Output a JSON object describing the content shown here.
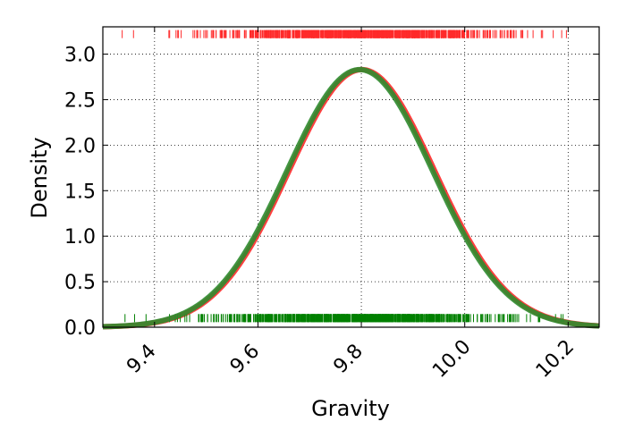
{
  "chart_data": {
    "type": "line",
    "title": "",
    "xlabel": "Gravity",
    "ylabel": "Density",
    "xlim": [
      9.3,
      10.26
    ],
    "ylim": [
      0.0,
      3.3
    ],
    "grid": true,
    "grid_style": "dotted",
    "legend": "none",
    "x_ticks": [
      9.4,
      9.6,
      9.8,
      10.0,
      10.2
    ],
    "x_tick_labels": [
      "9.4",
      "9.6",
      "9.8",
      "10.0",
      "10.2"
    ],
    "y_ticks": [
      0.0,
      0.5,
      1.0,
      1.5,
      2.0,
      2.5,
      3.0
    ],
    "y_tick_labels": [
      "0.0",
      "0.5",
      "1.0",
      "1.5",
      "2.0",
      "2.5",
      "3.0"
    ],
    "series": [
      {
        "color": "#ff2a2a",
        "curve": "gaussian",
        "mean": 9.801,
        "sd": 0.141,
        "peak": 2.83,
        "rug_y": 3.22
      },
      {
        "color": "#2e8b2e",
        "curve": "gaussian",
        "mean": 9.797,
        "sd": 0.141,
        "peak": 2.83,
        "rug_color": "#008000",
        "rug_y": 0.1
      }
    ]
  }
}
